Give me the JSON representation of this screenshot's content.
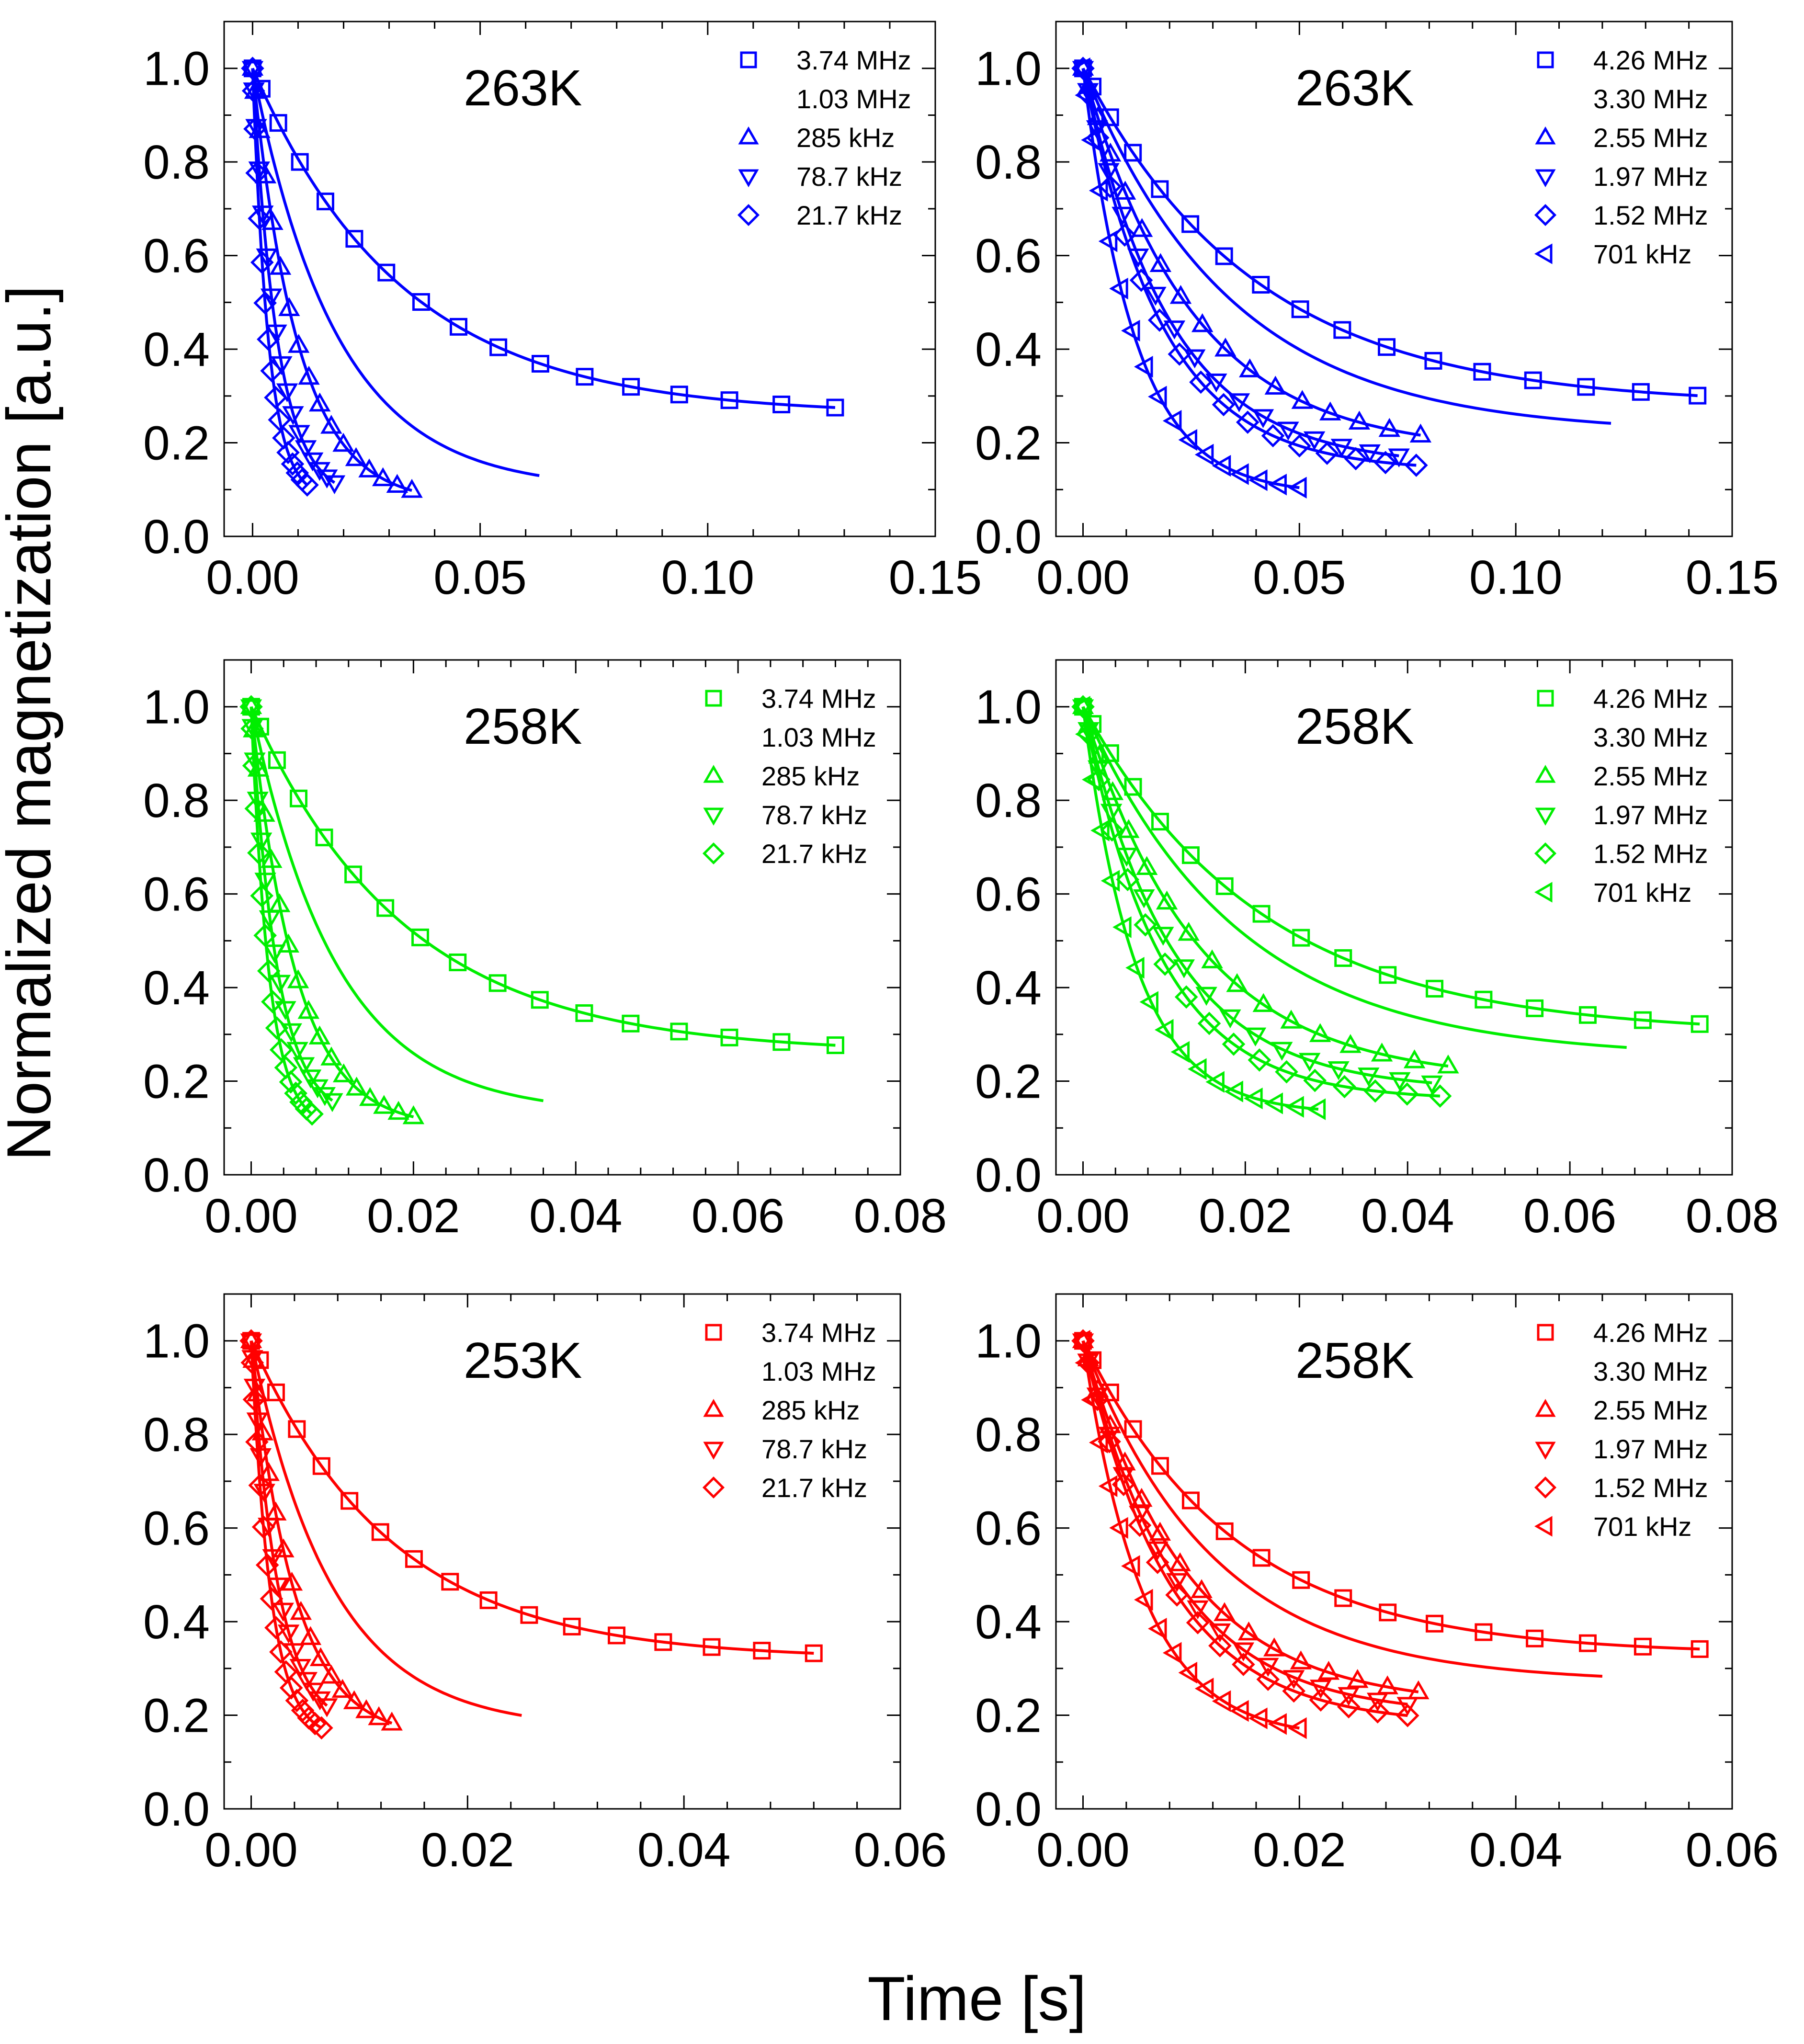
{
  "figure": {
    "ylabel": "Normalized magnetization [a.u.]",
    "xlabel": "Time [s]"
  },
  "chart_data": [
    {
      "type": "scatter",
      "title": "263K",
      "color": "#0000ff",
      "xlim": [
        0,
        0.15
      ],
      "ylim": [
        0,
        1.1
      ],
      "xticks": [
        "0.00",
        "0.05",
        "0.10",
        "0.15"
      ],
      "yticks": [
        "0.0",
        "0.2",
        "0.4",
        "0.6",
        "0.8",
        "1.0"
      ],
      "series": [
        {
          "name": "3.74 MHz",
          "marker": "square",
          "Minf": 0.26,
          "T": 0.033,
          "xmax": 0.128
        },
        {
          "name": "1.03 MHz",
          "marker": "circle",
          "Minf": 0.1,
          "T": 0.0185,
          "xmax": 0.063
        },
        {
          "name": "285 kHz",
          "marker": "triangle-up",
          "Minf": 0.07,
          "T": 0.01,
          "xmax": 0.035
        },
        {
          "name": "78.7 kHz",
          "marker": "triangle-down",
          "Minf": 0.08,
          "T": 0.0055,
          "xmax": 0.018
        },
        {
          "name": "21.7 kHz",
          "marker": "diamond",
          "Minf": 0.08,
          "T": 0.0035,
          "xmax": 0.012
        }
      ]
    },
    {
      "type": "scatter",
      "title": "263K",
      "color": "#0000ff",
      "xlim": [
        0,
        0.15
      ],
      "ylim": [
        0,
        1.1
      ],
      "xticks": [
        "0.00",
        "0.05",
        "0.10",
        "0.15"
      ],
      "yticks": [
        "0.0",
        "0.2",
        "0.4",
        "0.6",
        "0.8",
        "1.0"
      ],
      "series": [
        {
          "name": "4.26 MHz",
          "marker": "square",
          "Minf": 0.28,
          "T": 0.04,
          "xmax": 0.142
        },
        {
          "name": "3.30 MHz",
          "marker": "circle",
          "Minf": 0.22,
          "T": 0.034,
          "xmax": 0.122
        },
        {
          "name": "2.55 MHz",
          "marker": "triangle-up",
          "Minf": 0.18,
          "T": 0.025,
          "xmax": 0.078
        },
        {
          "name": "1.97 MHz",
          "marker": "triangle-down",
          "Minf": 0.15,
          "T": 0.02,
          "xmax": 0.073
        },
        {
          "name": "1.52 MHz",
          "marker": "diamond",
          "Minf": 0.14,
          "T": 0.018,
          "xmax": 0.077
        },
        {
          "name": "701 kHz",
          "marker": "triangle-left",
          "Minf": 0.09,
          "T": 0.012,
          "xmax": 0.05
        }
      ]
    },
    {
      "type": "scatter",
      "title": "258K",
      "color": "#00ee00",
      "xlim": [
        0,
        0.08
      ],
      "ylim": [
        0,
        1.1
      ],
      "xticks": [
        "0.00",
        "0.02",
        "0.04",
        "0.06",
        "0.08"
      ],
      "yticks": [
        "0.0",
        "0.2",
        "0.4",
        "0.6",
        "0.8",
        "1.0"
      ],
      "series": [
        {
          "name": "3.74 MHz",
          "marker": "square",
          "Minf": 0.26,
          "T": 0.019,
          "xmax": 0.072
        },
        {
          "name": "1.03 MHz",
          "marker": "circle",
          "Minf": 0.13,
          "T": 0.0105,
          "xmax": 0.036
        },
        {
          "name": "285 kHz",
          "marker": "triangle-up",
          "Minf": 0.1,
          "T": 0.0055,
          "xmax": 0.02
        },
        {
          "name": "78.7 kHz",
          "marker": "triangle-down",
          "Minf": 0.12,
          "T": 0.0032,
          "xmax": 0.01
        },
        {
          "name": "21.7 kHz",
          "marker": "diamond",
          "Minf": 0.1,
          "T": 0.0022,
          "xmax": 0.0075
        }
      ]
    },
    {
      "type": "scatter",
      "title": "258K",
      "color": "#00ee00",
      "xlim": [
        0,
        0.08
      ],
      "ylim": [
        0,
        1.1
      ],
      "xticks": [
        "0.00",
        "0.02",
        "0.04",
        "0.06",
        "0.08"
      ],
      "yticks": [
        "0.0",
        "0.2",
        "0.4",
        "0.6",
        "0.8",
        "1.0"
      ],
      "series": [
        {
          "name": "4.26 MHz",
          "marker": "square",
          "Minf": 0.3,
          "T": 0.022,
          "xmax": 0.076
        },
        {
          "name": "3.30 MHz",
          "marker": "circle",
          "Minf": 0.25,
          "T": 0.019,
          "xmax": 0.067
        },
        {
          "name": "2.55 MHz",
          "marker": "triangle-up",
          "Minf": 0.2,
          "T": 0.014,
          "xmax": 0.045
        },
        {
          "name": "1.97 MHz",
          "marker": "triangle-down",
          "Minf": 0.18,
          "T": 0.011,
          "xmax": 0.043
        },
        {
          "name": "1.52 MHz",
          "marker": "diamond",
          "Minf": 0.16,
          "T": 0.0095,
          "xmax": 0.044
        },
        {
          "name": "701 kHz",
          "marker": "triangle-left",
          "Minf": 0.13,
          "T": 0.0065,
          "xmax": 0.029
        }
      ]
    },
    {
      "type": "scatter",
      "title": "253K",
      "color": "#ff0000",
      "xlim": [
        0,
        0.06
      ],
      "ylim": [
        0,
        1.1
      ],
      "xticks": [
        "0.00",
        "0.02",
        "0.04",
        "0.06"
      ],
      "yticks": [
        "0.0",
        "0.2",
        "0.4",
        "0.6",
        "0.8",
        "1.0"
      ],
      "series": [
        {
          "name": "3.74 MHz",
          "marker": "square",
          "Minf": 0.32,
          "T": 0.013,
          "xmax": 0.052
        },
        {
          "name": "1.03 MHz",
          "marker": "circle",
          "Minf": 0.17,
          "T": 0.0075,
          "xmax": 0.025
        },
        {
          "name": "285 kHz",
          "marker": "triangle-up",
          "Minf": 0.15,
          "T": 0.004,
          "xmax": 0.013
        },
        {
          "name": "78.7 kHz",
          "marker": "triangle-down",
          "Minf": 0.17,
          "T": 0.0025,
          "xmax": 0.007
        },
        {
          "name": "21.7 kHz",
          "marker": "diamond",
          "Minf": 0.15,
          "T": 0.0018,
          "xmax": 0.0065
        }
      ]
    },
    {
      "type": "scatter",
      "title": "258K",
      "color": "#ff0000",
      "xlim": [
        0,
        0.06
      ],
      "ylim": [
        0,
        1.1
      ],
      "xticks": [
        "0.00",
        "0.02",
        "0.04",
        "0.06"
      ],
      "yticks": [
        "0.0",
        "0.2",
        "0.4",
        "0.6",
        "0.8",
        "1.0"
      ],
      "series": [
        {
          "name": "4.26 MHz",
          "marker": "square",
          "Minf": 0.33,
          "T": 0.014,
          "xmax": 0.057
        },
        {
          "name": "3.30 MHz",
          "marker": "circle",
          "Minf": 0.27,
          "T": 0.012,
          "xmax": 0.048
        },
        {
          "name": "2.55 MHz",
          "marker": "triangle-up",
          "Minf": 0.22,
          "T": 0.0095,
          "xmax": 0.031
        },
        {
          "name": "1.97 MHz",
          "marker": "triangle-down",
          "Minf": 0.2,
          "T": 0.0085,
          "xmax": 0.03
        },
        {
          "name": "1.52 MHz",
          "marker": "diamond",
          "Minf": 0.18,
          "T": 0.008,
          "xmax": 0.03
        },
        {
          "name": "701 kHz",
          "marker": "triangle-left",
          "Minf": 0.15,
          "T": 0.0055,
          "xmax": 0.02
        }
      ]
    }
  ]
}
